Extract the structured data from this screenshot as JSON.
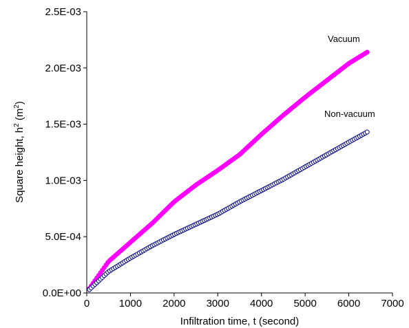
{
  "chart_data": {
    "type": "scatter",
    "title": "",
    "xlabel": "Infiltration time, t (second)",
    "ylabel_parts": {
      "before": "Square height, h",
      "sup1": "2",
      "middle": " (m",
      "sup2": "2",
      "after": ")"
    },
    "xlim": [
      0,
      7000
    ],
    "ylim": [
      0,
      0.0025
    ],
    "x_ticks": [
      {
        "value": 0,
        "label": "0"
      },
      {
        "value": 1000,
        "label": "1000"
      },
      {
        "value": 2000,
        "label": "2000"
      },
      {
        "value": 3000,
        "label": "3000"
      },
      {
        "value": 4000,
        "label": "4000"
      },
      {
        "value": 5000,
        "label": "5000"
      },
      {
        "value": 6000,
        "label": "6000"
      },
      {
        "value": 7000,
        "label": "7000"
      }
    ],
    "y_ticks": [
      {
        "value": 0,
        "label": "0.0E+00"
      },
      {
        "value": 0.0005,
        "label": "5.0E-04"
      },
      {
        "value": 0.001,
        "label": "1.0E-03"
      },
      {
        "value": 0.0015,
        "label": "1.5E-03"
      },
      {
        "value": 0.002,
        "label": "2.0E-03"
      },
      {
        "value": 0.0025,
        "label": "2.5E-03"
      }
    ],
    "grid": false,
    "legend": "none",
    "series": [
      {
        "name": "Vacuum",
        "color": "#ff00ff",
        "marker": "filled-circle",
        "x": [
          60,
          500,
          1000,
          1500,
          2000,
          2500,
          3000,
          3500,
          4000,
          4500,
          5000,
          5500,
          6000,
          6420
        ],
        "y": [
          4e-05,
          0.00028,
          0.00045,
          0.00062,
          0.00081,
          0.00096,
          0.00109,
          0.00123,
          0.00141,
          0.00158,
          0.00174,
          0.00189,
          0.00204,
          0.00214
        ]
      },
      {
        "name": "Non-vacuum",
        "color": "#000080",
        "marker": "open-circle",
        "x": [
          60,
          500,
          1000,
          1500,
          2000,
          2500,
          3000,
          3500,
          4000,
          4500,
          5000,
          5500,
          6000,
          6420
        ],
        "y": [
          3e-05,
          0.00019,
          0.00031,
          0.00042,
          0.00052,
          0.00061,
          0.0007,
          0.00081,
          0.00091,
          0.00101,
          0.00112,
          0.00123,
          0.00134,
          0.00143
        ]
      }
    ],
    "annotations": [
      {
        "text": "Vacuum",
        "series": "Vacuum"
      },
      {
        "text": "Non-vacuum",
        "series": "Non-vacuum"
      }
    ]
  }
}
